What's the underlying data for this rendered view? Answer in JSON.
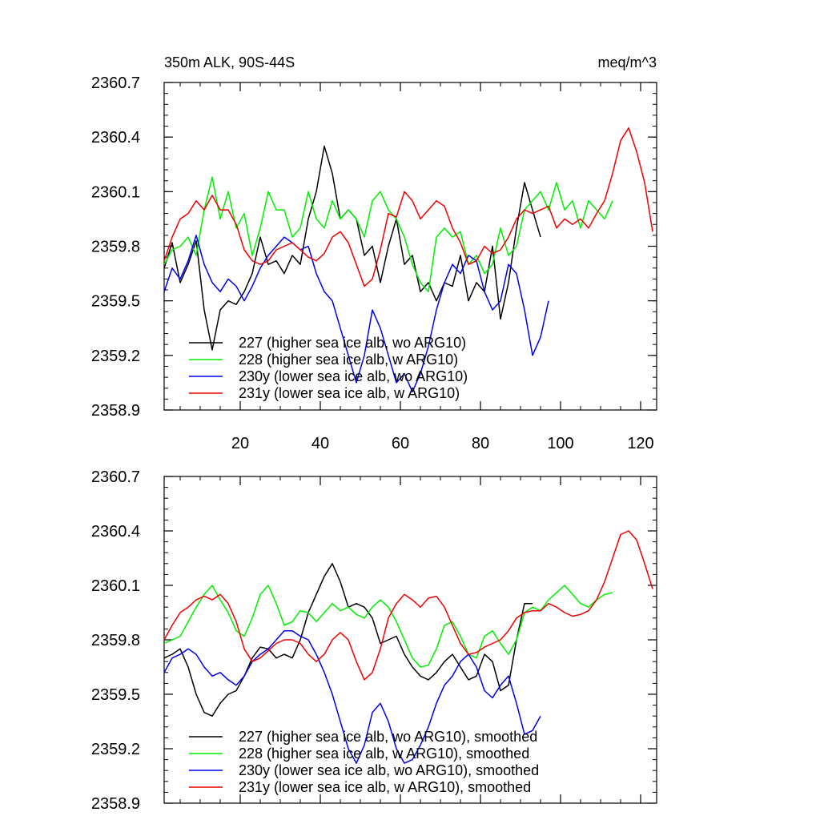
{
  "chart_data": [
    {
      "type": "line",
      "title": "350m ALK, 90S-44S",
      "units": "meq/m^3",
      "xlabel": "",
      "ylabel": "",
      "xlim": [
        1,
        124
      ],
      "ylim": [
        2358.9,
        2360.7
      ],
      "xticks": [
        20,
        40,
        60,
        80,
        100,
        120
      ],
      "xtick_labels": [
        "20",
        "40",
        "60",
        "80",
        "100",
        "120"
      ],
      "yticks": [
        2358.9,
        2359.2,
        2359.5,
        2359.8,
        2360.1,
        2360.4,
        2360.7
      ],
      "ytick_labels": [
        "2358.9",
        "2359.2",
        "2359.5",
        "2359.8",
        "2360.1",
        "2360.4",
        "2360.7"
      ],
      "legend_position": "bottom-left",
      "series": [
        {
          "name": "227 (higher sea ice alb, wo ARG10)",
          "color": "#000000",
          "x": [
            1,
            3,
            5,
            7,
            9,
            11,
            13,
            15,
            17,
            19,
            21,
            23,
            25,
            27,
            29,
            31,
            33,
            35,
            37,
            39,
            41,
            43,
            45,
            47,
            49,
            51,
            53,
            55,
            57,
            59,
            61,
            63,
            65,
            67,
            69,
            71,
            73,
            75,
            77,
            79,
            81,
            83,
            85,
            87,
            89,
            91,
            93,
            95
          ],
          "values": [
            2359.68,
            2359.82,
            2359.6,
            2359.7,
            2359.83,
            2359.45,
            2359.23,
            2359.45,
            2359.5,
            2359.48,
            2359.55,
            2359.65,
            2359.85,
            2359.7,
            2359.72,
            2359.65,
            2359.75,
            2359.7,
            2359.95,
            2360.1,
            2360.35,
            2360.2,
            2359.95,
            2360.0,
            2359.95,
            2359.75,
            2359.8,
            2359.6,
            2359.8,
            2359.95,
            2359.7,
            2359.75,
            2359.55,
            2359.6,
            2359.5,
            2359.6,
            2359.58,
            2359.75,
            2359.5,
            2359.6,
            2359.55,
            2359.8,
            2359.4,
            2359.6,
            2359.9,
            2360.15,
            2360.0,
            2359.85
          ]
        },
        {
          "name": "228 (higher sea ice alb, w ARG10)",
          "color": "#00ee00",
          "x": [
            1,
            3,
            5,
            7,
            9,
            11,
            13,
            15,
            17,
            19,
            21,
            23,
            25,
            27,
            29,
            31,
            33,
            35,
            37,
            39,
            41,
            43,
            45,
            47,
            49,
            51,
            53,
            55,
            57,
            59,
            61,
            63,
            65,
            67,
            69,
            71,
            73,
            75,
            77,
            79,
            81,
            83,
            85,
            87,
            89,
            91,
            93,
            95,
            97,
            99,
            101,
            103,
            105,
            107,
            109,
            111,
            113
          ],
          "values": [
            2359.7,
            2359.78,
            2359.8,
            2359.85,
            2359.75,
            2360.0,
            2360.18,
            2359.95,
            2360.1,
            2359.9,
            2359.98,
            2359.75,
            2359.9,
            2360.1,
            2360.0,
            2360.0,
            2359.85,
            2359.9,
            2360.1,
            2359.95,
            2359.9,
            2360.05,
            2359.95,
            2360.0,
            2359.95,
            2359.85,
            2360.05,
            2360.1,
            2360.0,
            2359.95,
            2359.85,
            2359.7,
            2359.6,
            2359.55,
            2359.85,
            2359.9,
            2359.85,
            2359.88,
            2359.7,
            2359.75,
            2359.65,
            2359.7,
            2359.9,
            2359.75,
            2359.8,
            2360.0,
            2360.05,
            2360.1,
            2360.0,
            2360.15,
            2360.0,
            2360.05,
            2359.9,
            2360.05,
            2360.0,
            2359.95,
            2360.05
          ]
        },
        {
          "name": "230y (lower sea ice alb, wo ARG10)",
          "color": "#0000ee",
          "x": [
            1,
            3,
            5,
            7,
            9,
            11,
            13,
            15,
            17,
            19,
            21,
            23,
            25,
            27,
            29,
            31,
            33,
            35,
            37,
            39,
            41,
            43,
            45,
            47,
            49,
            51,
            53,
            55,
            57,
            59,
            61,
            63,
            65,
            67,
            69,
            71,
            73,
            75,
            77,
            79,
            81,
            83,
            85,
            87,
            89,
            91,
            93,
            95,
            97
          ],
          "values": [
            2359.55,
            2359.68,
            2359.62,
            2359.72,
            2359.86,
            2359.7,
            2359.6,
            2359.55,
            2359.62,
            2359.58,
            2359.5,
            2359.58,
            2359.68,
            2359.75,
            2359.8,
            2359.85,
            2359.82,
            2359.78,
            2359.8,
            2359.65,
            2359.55,
            2359.5,
            2359.35,
            2359.2,
            2359.05,
            2359.2,
            2359.45,
            2359.35,
            2359.2,
            2359.05,
            2359.1,
            2359.0,
            2359.1,
            2359.25,
            2359.45,
            2359.6,
            2359.7,
            2359.65,
            2359.75,
            2359.72,
            2359.55,
            2359.45,
            2359.5,
            2359.7,
            2359.65,
            2359.45,
            2359.2,
            2359.3,
            2359.5
          ]
        },
        {
          "name": "231y (lower sea ice alb, w ARG10)",
          "color": "#ee0000",
          "x": [
            1,
            3,
            5,
            7,
            9,
            11,
            13,
            15,
            17,
            19,
            21,
            23,
            25,
            27,
            29,
            31,
            33,
            35,
            37,
            39,
            41,
            43,
            45,
            47,
            49,
            51,
            53,
            55,
            57,
            59,
            61,
            63,
            65,
            67,
            69,
            71,
            73,
            75,
            77,
            79,
            81,
            83,
            85,
            87,
            89,
            91,
            93,
            95,
            97,
            99,
            101,
            103,
            105,
            107,
            109,
            111,
            113,
            115,
            117,
            119,
            121,
            123
          ],
          "values": [
            2359.72,
            2359.85,
            2359.95,
            2359.98,
            2360.05,
            2360.0,
            2360.08,
            2360.0,
            2360.0,
            2359.92,
            2359.78,
            2359.72,
            2359.7,
            2359.72,
            2359.78,
            2359.8,
            2359.82,
            2359.78,
            2359.74,
            2359.72,
            2359.76,
            2359.85,
            2359.88,
            2359.82,
            2359.7,
            2359.58,
            2359.62,
            2359.78,
            2359.98,
            2359.96,
            2360.1,
            2360.05,
            2359.95,
            2360.0,
            2360.05,
            2360.02,
            2359.9,
            2359.82,
            2359.7,
            2359.72,
            2359.8,
            2359.76,
            2359.78,
            2359.85,
            2359.95,
            2360.0,
            2359.98,
            2360.0,
            2360.02,
            2359.9,
            2359.95,
            2359.92,
            2359.95,
            2359.9,
            2359.98,
            2360.05,
            2360.2,
            2360.38,
            2360.45,
            2360.32,
            2360.15,
            2359.88
          ]
        }
      ]
    },
    {
      "type": "line",
      "title": "",
      "xlabel": "",
      "ylabel": "",
      "xlim": [
        1,
        124
      ],
      "ylim": [
        2358.9,
        2360.7
      ],
      "xticks": [
        20,
        40,
        60,
        80,
        100,
        120
      ],
      "xtick_labels": [],
      "yticks": [
        2358.9,
        2359.2,
        2359.5,
        2359.8,
        2360.1,
        2360.4,
        2360.7
      ],
      "ytick_labels": [
        "2358.9",
        "2359.2",
        "2359.5",
        "2359.8",
        "2360.1",
        "2360.4",
        "2360.7"
      ],
      "legend_position": "bottom-left",
      "series": [
        {
          "name": "227 (higher sea ice alb, wo ARG10), smoothed",
          "color": "#000000",
          "x": [
            1,
            3,
            5,
            7,
            9,
            11,
            13,
            15,
            17,
            19,
            21,
            23,
            25,
            27,
            29,
            31,
            33,
            35,
            37,
            39,
            41,
            43,
            45,
            47,
            49,
            51,
            53,
            55,
            57,
            59,
            61,
            63,
            65,
            67,
            69,
            71,
            73,
            75,
            77,
            79,
            81,
            83,
            85,
            87,
            89,
            91,
            93
          ],
          "values": [
            2359.7,
            2359.72,
            2359.75,
            2359.65,
            2359.5,
            2359.4,
            2359.38,
            2359.45,
            2359.5,
            2359.52,
            2359.6,
            2359.7,
            2359.76,
            2359.75,
            2359.7,
            2359.72,
            2359.7,
            2359.8,
            2359.95,
            2360.05,
            2360.15,
            2360.22,
            2360.12,
            2359.98,
            2360.0,
            2359.98,
            2359.92,
            2359.78,
            2359.8,
            2359.82,
            2359.72,
            2359.65,
            2359.6,
            2359.58,
            2359.62,
            2359.68,
            2359.72,
            2359.65,
            2359.58,
            2359.6,
            2359.72,
            2359.68,
            2359.52,
            2359.55,
            2359.8,
            2360.0,
            2360.0
          ]
        },
        {
          "name": "228 (higher sea ice alb, w ARG10), smoothed",
          "color": "#00ee00",
          "x": [
            1,
            3,
            5,
            7,
            9,
            11,
            13,
            15,
            17,
            19,
            21,
            23,
            25,
            27,
            29,
            31,
            33,
            35,
            37,
            39,
            41,
            43,
            45,
            47,
            49,
            51,
            53,
            55,
            57,
            59,
            61,
            63,
            65,
            67,
            69,
            71,
            73,
            75,
            77,
            79,
            81,
            83,
            85,
            87,
            89,
            91,
            93,
            95,
            97,
            99,
            101,
            103,
            105,
            107,
            109,
            111,
            113
          ],
          "values": [
            2359.78,
            2359.8,
            2359.82,
            2359.9,
            2359.98,
            2360.05,
            2360.1,
            2360.02,
            2359.95,
            2359.85,
            2359.82,
            2359.92,
            2360.05,
            2360.1,
            2360.0,
            2359.88,
            2359.9,
            2359.96,
            2359.95,
            2359.9,
            2359.95,
            2360.0,
            2359.96,
            2359.98,
            2359.94,
            2359.92,
            2359.98,
            2360.02,
            2359.98,
            2359.9,
            2359.8,
            2359.7,
            2359.65,
            2359.66,
            2359.75,
            2359.88,
            2359.9,
            2359.82,
            2359.72,
            2359.7,
            2359.82,
            2359.85,
            2359.78,
            2359.72,
            2359.8,
            2359.95,
            2359.98,
            2359.96,
            2360.02,
            2360.06,
            2360.1,
            2360.05,
            2360.0,
            2359.98,
            2360.02,
            2360.05,
            2360.06
          ]
        },
        {
          "name": "230y (lower sea ice alb, wo ARG10), smoothed",
          "color": "#0000ee",
          "x": [
            1,
            3,
            5,
            7,
            9,
            11,
            13,
            15,
            17,
            19,
            21,
            23,
            25,
            27,
            29,
            31,
            33,
            35,
            37,
            39,
            41,
            43,
            45,
            47,
            49,
            51,
            53,
            55,
            57,
            59,
            61,
            63,
            65,
            67,
            69,
            71,
            73,
            75,
            77,
            79,
            81,
            83,
            85,
            87,
            89,
            91,
            93,
            95
          ],
          "values": [
            2359.62,
            2359.7,
            2359.72,
            2359.75,
            2359.72,
            2359.65,
            2359.6,
            2359.62,
            2359.58,
            2359.55,
            2359.6,
            2359.68,
            2359.72,
            2359.75,
            2359.8,
            2359.85,
            2359.85,
            2359.82,
            2359.8,
            2359.72,
            2359.62,
            2359.5,
            2359.35,
            2359.2,
            2359.12,
            2359.22,
            2359.4,
            2359.45,
            2359.35,
            2359.2,
            2359.12,
            2359.14,
            2359.22,
            2359.32,
            2359.45,
            2359.55,
            2359.6,
            2359.68,
            2359.72,
            2359.65,
            2359.52,
            2359.48,
            2359.55,
            2359.6,
            2359.45,
            2359.28,
            2359.3,
            2359.38
          ]
        },
        {
          "name": "231y (lower sea ice alb, w ARG10), smoothed",
          "color": "#ee0000",
          "x": [
            1,
            3,
            5,
            7,
            9,
            11,
            13,
            15,
            17,
            19,
            21,
            23,
            25,
            27,
            29,
            31,
            33,
            35,
            37,
            39,
            41,
            43,
            45,
            47,
            49,
            51,
            53,
            55,
            57,
            59,
            61,
            63,
            65,
            67,
            69,
            71,
            73,
            75,
            77,
            79,
            81,
            83,
            85,
            87,
            89,
            91,
            93,
            95,
            97,
            99,
            101,
            103,
            105,
            107,
            109,
            111,
            113,
            115,
            117,
            119,
            121,
            123
          ],
          "values": [
            2359.8,
            2359.88,
            2359.95,
            2359.98,
            2360.02,
            2360.04,
            2360.02,
            2360.05,
            2360.0,
            2359.9,
            2359.75,
            2359.68,
            2359.7,
            2359.74,
            2359.78,
            2359.8,
            2359.8,
            2359.78,
            2359.72,
            2359.68,
            2359.72,
            2359.8,
            2359.84,
            2359.8,
            2359.68,
            2359.58,
            2359.62,
            2359.75,
            2359.92,
            2360.0,
            2360.05,
            2360.02,
            2359.98,
            2360.03,
            2360.04,
            2359.98,
            2359.88,
            2359.78,
            2359.72,
            2359.73,
            2359.76,
            2359.78,
            2359.8,
            2359.85,
            2359.92,
            2359.95,
            2359.96,
            2359.96,
            2360.0,
            2359.98,
            2359.95,
            2359.93,
            2359.94,
            2359.96,
            2360.02,
            2360.12,
            2360.25,
            2360.38,
            2360.4,
            2360.35,
            2360.22,
            2360.08
          ]
        }
      ]
    }
  ]
}
